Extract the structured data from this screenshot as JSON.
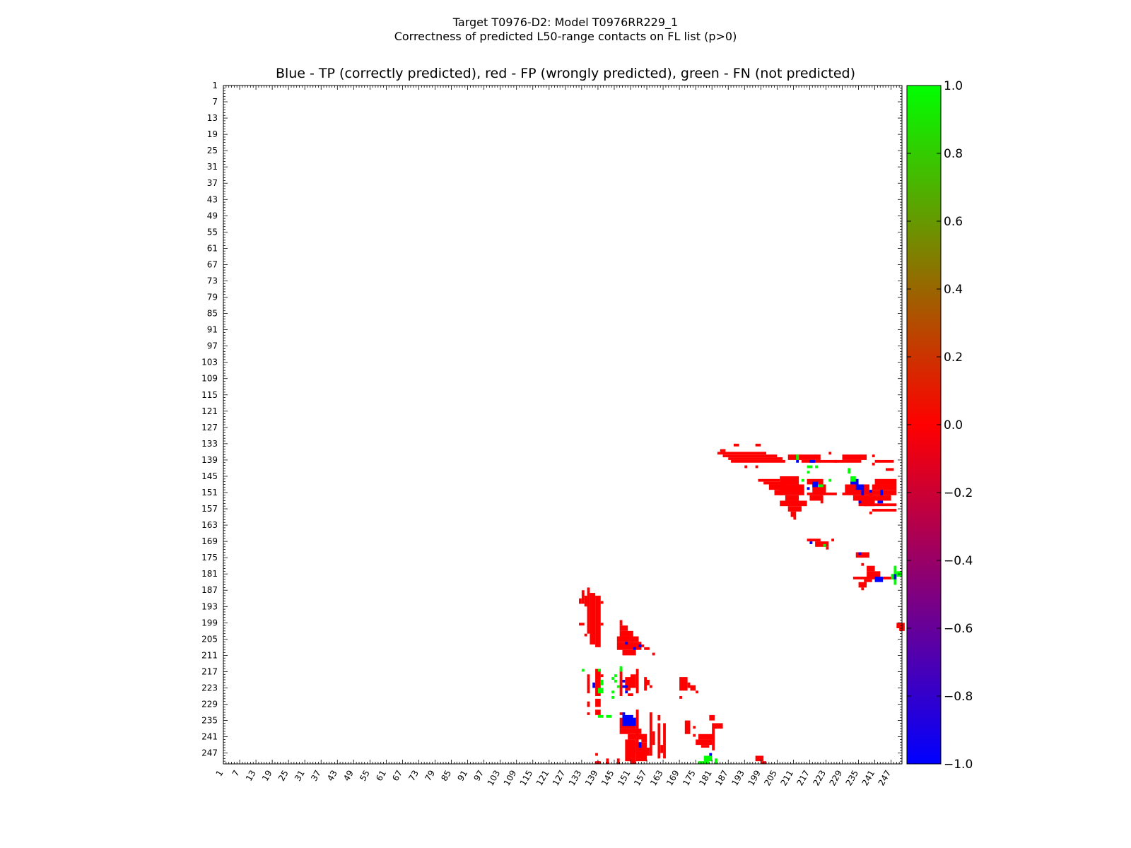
{
  "chart_data": {
    "type": "heatmap",
    "title_line1": "Target T0976-D2: Model T0976RR229_1",
    "title_line2": "Correctness of predicted L50-range contacts on FL list (p>0)",
    "subtitle": "Blue - TP (correctly predicted), red - FP (wrongly predicted), green - FN (not predicted)",
    "xlim": [
      1,
      251
    ],
    "ylim": [
      1,
      251
    ],
    "tick_labels": [
      "1",
      "7",
      "13",
      "19",
      "25",
      "31",
      "37",
      "43",
      "49",
      "55",
      "61",
      "67",
      "73",
      "79",
      "85",
      "91",
      "97",
      "103",
      "109",
      "115",
      "121",
      "127",
      "133",
      "139",
      "145",
      "151",
      "157",
      "163",
      "169",
      "175",
      "181",
      "187",
      "193",
      "199",
      "205",
      "211",
      "217",
      "223",
      "229",
      "235",
      "241",
      "247"
    ],
    "colorbar": {
      "min": -1.0,
      "max": 1.0,
      "tick_labels": [
        "1.0",
        "0.8",
        "0.6",
        "0.4",
        "0.2",
        "0.0",
        "−0.2",
        "−0.4",
        "−0.6",
        "−0.8",
        "−1.0"
      ],
      "colors": [
        "#0000ff",
        "#ff0000",
        "#00ff00"
      ]
    },
    "value_map": {
      "TP": -1,
      "FP": 0,
      "FN": 1
    },
    "series": [
      {
        "value": 0,
        "rects": [
          [
            184,
            135,
            186,
            136
          ],
          [
            189,
            133,
            191,
            134
          ],
          [
            197,
            133,
            199,
            134
          ],
          [
            183,
            136,
            201,
            137
          ],
          [
            185,
            137,
            205,
            138
          ],
          [
            187,
            138,
            207,
            139
          ],
          [
            188,
            139,
            208,
            140
          ],
          [
            193,
            141,
            194,
            142
          ],
          [
            197,
            141,
            198,
            142
          ],
          [
            209,
            137,
            221,
            139
          ],
          [
            214,
            139,
            227,
            140
          ],
          [
            224,
            136,
            225,
            137
          ],
          [
            229,
            137,
            238,
            139
          ],
          [
            226,
            139,
            236,
            140
          ],
          [
            240,
            137,
            241,
            138
          ],
          [
            241,
            139,
            248,
            140
          ],
          [
            240,
            140,
            241,
            141
          ],
          [
            245,
            142,
            248,
            143
          ],
          [
            198,
            146,
            206,
            147
          ],
          [
            200,
            147,
            208,
            148
          ],
          [
            202,
            148,
            208,
            150
          ],
          [
            204,
            150,
            207,
            152
          ],
          [
            206,
            145,
            213,
            148
          ],
          [
            206,
            148,
            215,
            152
          ],
          [
            208,
            152,
            213,
            154
          ],
          [
            206,
            154,
            216,
            156
          ],
          [
            209,
            156,
            214,
            158
          ],
          [
            210,
            158,
            212,
            160
          ],
          [
            211,
            160,
            212,
            161
          ],
          [
            216,
            146,
            222,
            148
          ],
          [
            218,
            148,
            223,
            151
          ],
          [
            216,
            151,
            227,
            152
          ],
          [
            217,
            152,
            222,
            154
          ],
          [
            221,
            154,
            222,
            155
          ],
          [
            230,
            148,
            239,
            151
          ],
          [
            229,
            151,
            240,
            152
          ],
          [
            233,
            152,
            240,
            154
          ],
          [
            235,
            154,
            238,
            156
          ],
          [
            237,
            153,
            241,
            156
          ],
          [
            241,
            146,
            249,
            148
          ],
          [
            240,
            148,
            249,
            150
          ],
          [
            239,
            150,
            249,
            152
          ],
          [
            239,
            152,
            247,
            154
          ],
          [
            237,
            155,
            249,
            156
          ],
          [
            240,
            157,
            249,
            158
          ],
          [
            239,
            158,
            240,
            159
          ],
          [
            216,
            168,
            221,
            169
          ],
          [
            219,
            169,
            224,
            171
          ],
          [
            225,
            168,
            226,
            169
          ],
          [
            223,
            171,
            224,
            172
          ],
          [
            234,
            173,
            239,
            175
          ],
          [
            236,
            177,
            237,
            178
          ],
          [
            238,
            178,
            241,
            180
          ],
          [
            238,
            180,
            243,
            182
          ],
          [
            233,
            182,
            248,
            183
          ],
          [
            237,
            183,
            240,
            184
          ],
          [
            235,
            184,
            238,
            186
          ],
          [
            236,
            186,
            237,
            187
          ],
          [
            249,
            199,
            252,
            201
          ],
          [
            250,
            201,
            252,
            202
          ],
          [
            133,
            187,
            134,
            192
          ],
          [
            134,
            189,
            135,
            193
          ],
          [
            135,
            186,
            136,
            203
          ],
          [
            136,
            188,
            138,
            207
          ],
          [
            138,
            189,
            140,
            208
          ],
          [
            132,
            190,
            133,
            192
          ],
          [
            132,
            199,
            134,
            200
          ],
          [
            134,
            203,
            135,
            204
          ],
          [
            140,
            191,
            141,
            192
          ],
          [
            140,
            199,
            141,
            200
          ],
          [
            147,
            198,
            148,
            200
          ],
          [
            147,
            200,
            150,
            202
          ],
          [
            147,
            202,
            152,
            204
          ],
          [
            146,
            204,
            154,
            206
          ],
          [
            146,
            206,
            155,
            209
          ],
          [
            148,
            209,
            153,
            211
          ],
          [
            151,
            207,
            156,
            208
          ],
          [
            156,
            208,
            158,
            209
          ],
          [
            159,
            210,
            160,
            211
          ],
          [
            151,
            205,
            152,
            206
          ],
          [
            135,
            218,
            136,
            225
          ],
          [
            138,
            216,
            140,
            226
          ],
          [
            140,
            218,
            141,
            219
          ],
          [
            138,
            227,
            140,
            230
          ],
          [
            135,
            228,
            136,
            230
          ],
          [
            135,
            232,
            136,
            233
          ],
          [
            138,
            231,
            140,
            233
          ],
          [
            147,
            216,
            148,
            226
          ],
          [
            149,
            219,
            151,
            224
          ],
          [
            151,
            218,
            153,
            223
          ],
          [
            153,
            216,
            154,
            225
          ],
          [
            150,
            225,
            152,
            226
          ],
          [
            156,
            219,
            157,
            224
          ],
          [
            157,
            220,
            158,
            222
          ],
          [
            158,
            222,
            159,
            223
          ],
          [
            169,
            219,
            172,
            224
          ],
          [
            172,
            221,
            173,
            223
          ],
          [
            173,
            222,
            175,
            224
          ],
          [
            175,
            224,
            176,
            225
          ],
          [
            169,
            226,
            170,
            227
          ],
          [
            147,
            234,
            153,
            238
          ],
          [
            147,
            238,
            155,
            240
          ],
          [
            150,
            240,
            157,
            242
          ],
          [
            147,
            232,
            148,
            233
          ],
          [
            153,
            231,
            154,
            247
          ],
          [
            155,
            240,
            157,
            243
          ],
          [
            158,
            232,
            159,
            248
          ],
          [
            159,
            239,
            160,
            244
          ],
          [
            149,
            242,
            151,
            250
          ],
          [
            151,
            242,
            153,
            251
          ],
          [
            153,
            243,
            157,
            250
          ],
          [
            156,
            245,
            158,
            248
          ],
          [
            138,
            247,
            139,
            248
          ],
          [
            138,
            250,
            140,
            251
          ],
          [
            142,
            249,
            143,
            251
          ],
          [
            146,
            249,
            147,
            251
          ],
          [
            161,
            236,
            162,
            249
          ],
          [
            163,
            236,
            164,
            249
          ],
          [
            162,
            244,
            163,
            247
          ],
          [
            161,
            233,
            162,
            235
          ],
          [
            171,
            235,
            173,
            240
          ],
          [
            174,
            237,
            175,
            238
          ],
          [
            174,
            240,
            175,
            241
          ],
          [
            176,
            240,
            182,
            242
          ],
          [
            175,
            242,
            181,
            244
          ],
          [
            177,
            244,
            180,
            245
          ],
          [
            181,
            236,
            182,
            246
          ],
          [
            182,
            237,
            183,
            238
          ],
          [
            182,
            236,
            185,
            238
          ],
          [
            180,
            233,
            182,
            235
          ],
          [
            197,
            248,
            200,
            250
          ],
          [
            199,
            250,
            201,
            251
          ]
        ]
      },
      {
        "value": -1,
        "rects": [
          [
            217,
            139,
            219,
            140
          ],
          [
            212,
            139,
            213,
            140
          ],
          [
            218,
            147,
            220,
            149
          ],
          [
            216,
            149,
            217,
            150
          ],
          [
            232,
            146,
            235,
            148
          ],
          [
            234,
            148,
            237,
            150
          ],
          [
            236,
            150,
            237,
            152
          ],
          [
            235,
            154,
            236,
            155
          ],
          [
            239,
            150,
            240,
            151
          ],
          [
            243,
            150,
            244,
            152
          ],
          [
            242,
            154,
            244,
            155
          ],
          [
            235,
            173,
            236,
            174
          ],
          [
            137,
            221,
            138,
            223
          ],
          [
            148,
            222,
            150,
            223
          ],
          [
            149,
            224,
            150,
            225
          ],
          [
            148,
            232,
            149,
            233
          ],
          [
            148,
            233,
            152,
            237
          ],
          [
            152,
            234,
            153,
            237
          ],
          [
            154,
            243,
            155,
            245
          ],
          [
            152,
            208,
            153,
            209
          ],
          [
            149,
            206,
            150,
            207
          ],
          [
            154,
            207,
            155,
            208
          ],
          [
            180,
            247,
            181,
            248
          ],
          [
            241,
            182,
            244,
            184
          ],
          [
            248,
            181,
            249,
            183
          ],
          [
            217,
            169,
            218,
            170
          ],
          [
            148,
            220,
            149,
            221
          ]
        ]
      },
      {
        "value": 1,
        "rects": [
          [
            212,
            137,
            213,
            139
          ],
          [
            216,
            141,
            218,
            142
          ],
          [
            219,
            141,
            220,
            142
          ],
          [
            216,
            143,
            217,
            144
          ],
          [
            214,
            146,
            215,
            147
          ],
          [
            224,
            146,
            225,
            147
          ],
          [
            220,
            148,
            222,
            149
          ],
          [
            231,
            142,
            232,
            144
          ],
          [
            232,
            145,
            234,
            147
          ],
          [
            222,
            170,
            223,
            171
          ],
          [
            248,
            178,
            249,
            181
          ],
          [
            249,
            180,
            251,
            182
          ],
          [
            247,
            181,
            248,
            183
          ],
          [
            248,
            183,
            249,
            185
          ],
          [
            133,
            216,
            134,
            217
          ],
          [
            139,
            216,
            140,
            217
          ],
          [
            140,
            220,
            141,
            222
          ],
          [
            139,
            223,
            141,
            225
          ],
          [
            144,
            219,
            145,
            220
          ],
          [
            144,
            226,
            145,
            227
          ],
          [
            145,
            218,
            146,
            219
          ],
          [
            145,
            220,
            146,
            221
          ],
          [
            146,
            222,
            147,
            223
          ],
          [
            147,
            215,
            148,
            217
          ],
          [
            139,
            233,
            141,
            234
          ],
          [
            142,
            233,
            144,
            234
          ],
          [
            144,
            224,
            145,
            225
          ],
          [
            176,
            250,
            180,
            251
          ],
          [
            178,
            248,
            181,
            250
          ],
          [
            182,
            249,
            183,
            251
          ]
        ]
      }
    ]
  }
}
